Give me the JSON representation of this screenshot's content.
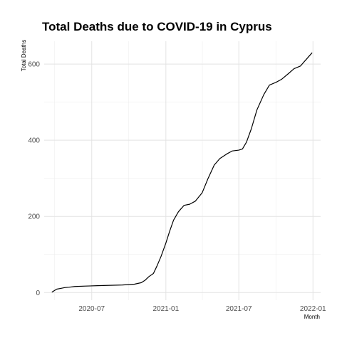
{
  "chart_data": {
    "type": "line",
    "title": "Total Deaths due to COVID-19 in Cyprus",
    "xlabel": "Month",
    "ylabel": "Total Deaths",
    "x_ticks": [
      "2020-07",
      "2021-01",
      "2021-07",
      "2022-01"
    ],
    "y_ticks": [
      0,
      200,
      400,
      600
    ],
    "xlim": [
      "2020-03-05",
      "2022-01-20"
    ],
    "ylim": [
      -20,
      660
    ],
    "grid": true,
    "legend": "none",
    "series": [
      {
        "values": [
          [
            "2020-03-24",
            1
          ],
          [
            "2020-03-30",
            5
          ],
          [
            "2020-04-05",
            9
          ],
          [
            "2020-04-15",
            11
          ],
          [
            "2020-04-25",
            13
          ],
          [
            "2020-05-05",
            14
          ],
          [
            "2020-05-20",
            16
          ],
          [
            "2020-06-15",
            17
          ],
          [
            "2020-07-15",
            18
          ],
          [
            "2020-08-15",
            19
          ],
          [
            "2020-09-15",
            20
          ],
          [
            "2020-10-15",
            22
          ],
          [
            "2020-11-01",
            26
          ],
          [
            "2020-11-10",
            32
          ],
          [
            "2020-11-20",
            42
          ],
          [
            "2020-12-01",
            50
          ],
          [
            "2020-12-10",
            70
          ],
          [
            "2020-12-20",
            95
          ],
          [
            "2021-01-01",
            130
          ],
          [
            "2021-01-10",
            160
          ],
          [
            "2021-01-20",
            190
          ],
          [
            "2021-02-01",
            212
          ],
          [
            "2021-02-15",
            229
          ],
          [
            "2021-03-01",
            232
          ],
          [
            "2021-03-15",
            240
          ],
          [
            "2021-04-01",
            262
          ],
          [
            "2021-04-15",
            298
          ],
          [
            "2021-05-01",
            335
          ],
          [
            "2021-05-15",
            352
          ],
          [
            "2021-06-01",
            364
          ],
          [
            "2021-06-15",
            372
          ],
          [
            "2021-07-01",
            374
          ],
          [
            "2021-07-10",
            377
          ],
          [
            "2021-07-20",
            395
          ],
          [
            "2021-08-01",
            430
          ],
          [
            "2021-08-15",
            480
          ],
          [
            "2021-09-01",
            520
          ],
          [
            "2021-09-15",
            545
          ],
          [
            "2021-10-01",
            552
          ],
          [
            "2021-10-15",
            560
          ],
          [
            "2021-11-01",
            575
          ],
          [
            "2021-11-15",
            588
          ],
          [
            "2021-12-01",
            595
          ],
          [
            "2021-12-15",
            612
          ],
          [
            "2021-12-30",
            630
          ]
        ]
      }
    ]
  }
}
